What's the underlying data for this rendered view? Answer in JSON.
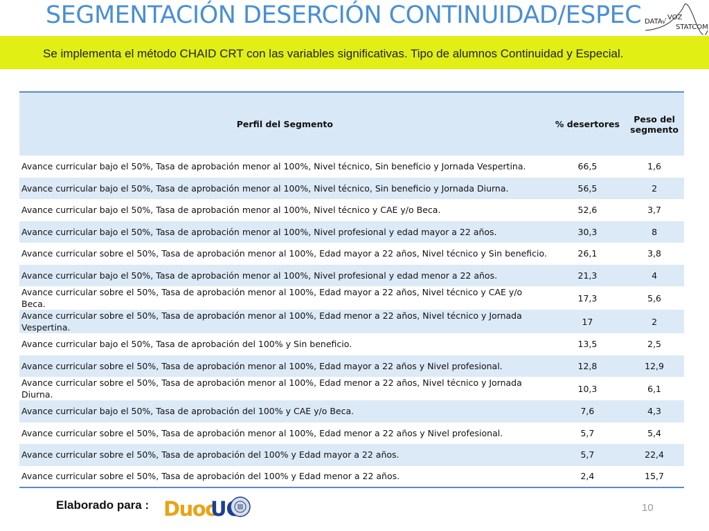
{
  "header": {
    "title": "SEGMENTACIÓN DESERCIÓN CONTINUIDAD/ESPECIAL",
    "subtitle": "Se implementa el método CHAID CRT con las variables significativas. Tipo de alumnos Continuidad y Especial.",
    "logo": {
      "icon": "datavoz-statcom-logo",
      "text_top": "DATA",
      "text_mid": "VOZ",
      "text_bottom": "STATCOM"
    }
  },
  "table": {
    "columns": [
      "Perfil del Segmento",
      "% desertores",
      "Peso del segmento"
    ],
    "rows": [
      {
        "perfil": "Avance curricular bajo el 50%, Tasa de aprobación menor al 100%, Nivel técnico, Sin beneficio y Jornada Vespertina.",
        "desertores": "66,5",
        "peso": "1,6"
      },
      {
        "perfil": "Avance curricular bajo el 50%, Tasa de aprobación menor al 100%, Nivel técnico, Sin beneficio y Jornada Diurna.",
        "desertores": "56,5",
        "peso": "2"
      },
      {
        "perfil": "Avance curricular bajo el 50%, Tasa de aprobación menor al 100%, Nivel técnico y CAE y/o Beca.",
        "desertores": "52,6",
        "peso": "3,7"
      },
      {
        "perfil": "Avance curricular bajo el 50%, Tasa de aprobación menor al 100%, Nivel profesional y edad mayor a 22 años.",
        "desertores": "30,3",
        "peso": "8"
      },
      {
        "perfil": "Avance curricular sobre el 50%, Tasa de aprobación menor al 100%, Edad mayor a 22 años, Nivel técnico y Sin beneficio.",
        "desertores": "26,1",
        "peso": "3,8"
      },
      {
        "perfil": "Avance curricular bajo el 50%, Tasa de aprobación menor al 100%, Nivel profesional y edad menor a 22 años.",
        "desertores": "21,3",
        "peso": "4"
      },
      {
        "perfil": "Avance curricular sobre el 50%, Tasa de aprobación menor al 100%, Edad mayor a 22 años, Nivel técnico y CAE y/o Beca.",
        "desertores": "17,3",
        "peso": "5,6"
      },
      {
        "perfil": "Avance curricular sobre el 50%, Tasa de aprobación menor al 100%, Edad menor a 22 años, Nivel técnico y Jornada Vespertina.",
        "desertores": "17",
        "peso": "2"
      },
      {
        "perfil": "Avance curricular bajo el 50%, Tasa de aprobación del 100% y Sin beneficio.",
        "desertores": "13,5",
        "peso": "2,5"
      },
      {
        "perfil": "Avance curricular sobre el 50%, Tasa de aprobación menor al 100%, Edad mayor a 22 años y Nivel profesional.",
        "desertores": "12,8",
        "peso": "12,9"
      },
      {
        "perfil": "Avance curricular sobre el 50%, Tasa de aprobación menor al 100%, Edad menor a 22 años, Nivel técnico y Jornada Diurna.",
        "desertores": "10,3",
        "peso": "6,1"
      },
      {
        "perfil": "Avance curricular bajo el 50%, Tasa de aprobación del 100% y CAE y/o Beca.",
        "desertores": "7,6",
        "peso": "4,3"
      },
      {
        "perfil": "Avance curricular sobre el 50%, Tasa de aprobación menor al 100%, Edad menor a 22 años y Nivel profesional.",
        "desertores": "5,7",
        "peso": "5,4"
      },
      {
        "perfil": "Avance curricular sobre el 50%, Tasa de aprobación del 100% y Edad mayor a 22 años.",
        "desertores": "5,7",
        "peso": "22,4"
      },
      {
        "perfil": "Avance curricular sobre el 50%, Tasa de aprobación del 100% y Edad menor a 22 años.",
        "desertores": "2,4",
        "peso": "15,7"
      }
    ]
  },
  "footer": {
    "label": "Elaborado para :",
    "logo": {
      "icon": "duocuc-logo",
      "text_duoc": "Duoc",
      "text_uc": "UC"
    },
    "page_number": "10"
  },
  "colors": {
    "title": "#4a8fd3",
    "banner": "#e2ef14",
    "row_alt": "#dce9f6",
    "table_border": "#5b8ac7",
    "duoc_gold": "#e8a317",
    "uc_blue": "#1c3f94"
  }
}
